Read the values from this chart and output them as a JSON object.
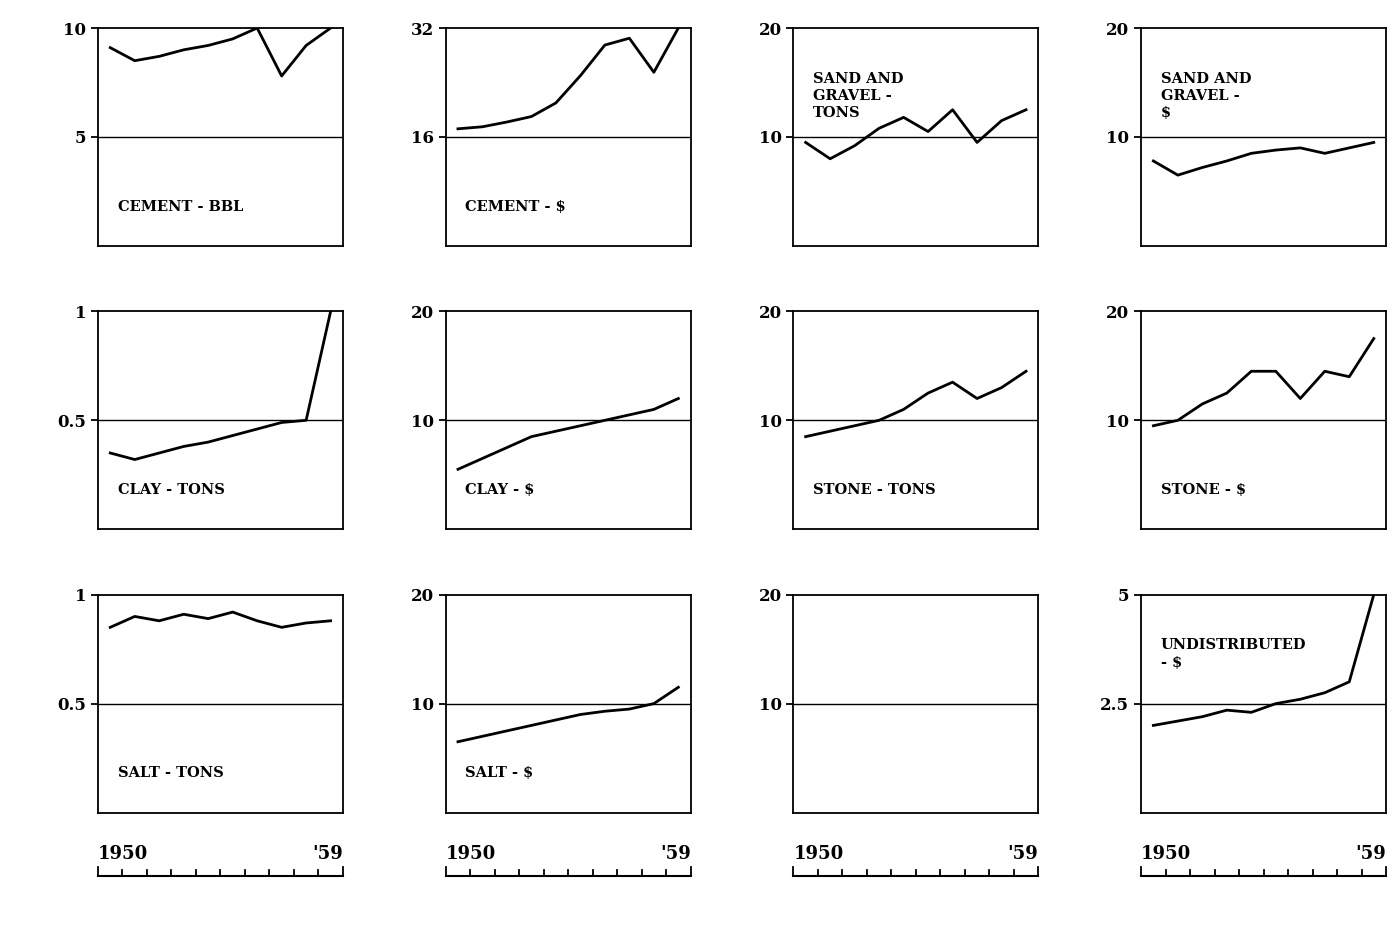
{
  "years": [
    0,
    1,
    2,
    3,
    4,
    5,
    6,
    7,
    8,
    9
  ],
  "panels": [
    {
      "row": 0,
      "col": 0,
      "label_lines": [
        "CEMENT - BBL"
      ],
      "label_pos": "bottom",
      "ytop": 10,
      "ymid": 5,
      "data": [
        9.1,
        8.5,
        8.7,
        9.0,
        9.2,
        9.5,
        10.0,
        7.8,
        9.2,
        10.0
      ]
    },
    {
      "row": 0,
      "col": 1,
      "label_lines": [
        "CEMENT - $"
      ],
      "label_pos": "bottom",
      "ytop": 32,
      "ymid": 16,
      "data": [
        17.2,
        17.5,
        18.2,
        19.0,
        21.0,
        25.0,
        29.5,
        30.5,
        25.5,
        32.0
      ]
    },
    {
      "row": 0,
      "col": 2,
      "label_lines": [
        "SAND AND",
        "GRAVEL -",
        "TONS"
      ],
      "label_pos": "top",
      "ytop": 20,
      "ymid": 10,
      "data": [
        9.5,
        8.0,
        9.2,
        10.8,
        11.8,
        10.5,
        12.5,
        9.5,
        11.5,
        12.5
      ]
    },
    {
      "row": 0,
      "col": 3,
      "label_lines": [
        "SAND AND",
        "GRAVEL -",
        "$"
      ],
      "label_pos": "top",
      "ytop": 20,
      "ymid": 10,
      "data": [
        7.8,
        6.5,
        7.2,
        7.8,
        8.5,
        8.8,
        9.0,
        8.5,
        9.0,
        9.5
      ]
    },
    {
      "row": 1,
      "col": 0,
      "label_lines": [
        "CLAY - TONS"
      ],
      "label_pos": "bottom",
      "ytop": 1.0,
      "ymid": 0.5,
      "data": [
        0.35,
        0.32,
        0.35,
        0.38,
        0.4,
        0.43,
        0.46,
        0.49,
        0.5,
        1.0
      ]
    },
    {
      "row": 1,
      "col": 1,
      "label_lines": [
        "CLAY - $"
      ],
      "label_pos": "bottom",
      "ytop": 20,
      "ymid": 10,
      "data": [
        5.5,
        6.5,
        7.5,
        8.5,
        9.0,
        9.5,
        10.0,
        10.5,
        11.0,
        12.0
      ]
    },
    {
      "row": 1,
      "col": 2,
      "label_lines": [
        "STONE - TONS"
      ],
      "label_pos": "bottom",
      "ytop": 20,
      "ymid": 10,
      "data": [
        8.5,
        9.0,
        9.5,
        10.0,
        11.0,
        12.5,
        13.5,
        12.0,
        13.0,
        14.5
      ]
    },
    {
      "row": 1,
      "col": 3,
      "label_lines": [
        "STONE - $"
      ],
      "label_pos": "bottom",
      "ytop": 20,
      "ymid": 10,
      "data": [
        9.5,
        10.0,
        11.5,
        12.5,
        14.5,
        14.5,
        12.0,
        14.5,
        14.0,
        17.5
      ]
    },
    {
      "row": 2,
      "col": 0,
      "label_lines": [
        "SALT - TONS"
      ],
      "label_pos": "bottom",
      "ytop": 1.0,
      "ymid": 0.5,
      "data": [
        0.85,
        0.9,
        0.88,
        0.91,
        0.89,
        0.92,
        0.88,
        0.85,
        0.87,
        0.88
      ]
    },
    {
      "row": 2,
      "col": 1,
      "label_lines": [
        "SALT - $"
      ],
      "label_pos": "bottom",
      "ytop": 20,
      "ymid": 10,
      "data": [
        6.5,
        7.0,
        7.5,
        8.0,
        8.5,
        9.0,
        9.3,
        9.5,
        10.0,
        11.5
      ]
    },
    {
      "row": 2,
      "col": 2,
      "label_lines": [],
      "label_pos": "bottom",
      "ytop": 20,
      "ymid": 10,
      "data": null
    },
    {
      "row": 2,
      "col": 3,
      "label_lines": [
        "UNDISTRIBUTED",
        "- $"
      ],
      "label_pos": "top",
      "ytop": 5.0,
      "ymid": 2.5,
      "data": [
        2.0,
        2.1,
        2.2,
        2.35,
        2.3,
        2.5,
        2.6,
        2.75,
        3.0,
        5.0
      ]
    }
  ]
}
